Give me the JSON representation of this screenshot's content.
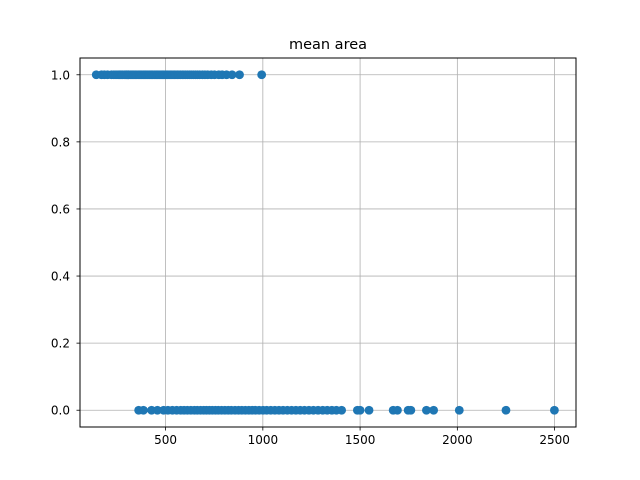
{
  "chart_data": {
    "type": "scatter",
    "title": "mean area",
    "xlabel": "",
    "ylabel": "",
    "xlim": [
      60,
      2610
    ],
    "ylim": [
      -0.05,
      1.05
    ],
    "xticks": [
      500,
      1000,
      1500,
      2000,
      2500
    ],
    "yticks": [
      0.0,
      0.2,
      0.4,
      0.6,
      0.8,
      1.0
    ],
    "xtick_labels": [
      "500",
      "1000",
      "1500",
      "2000",
      "2500"
    ],
    "ytick_labels": [
      "0.0",
      "0.2",
      "0.4",
      "0.6",
      "0.8",
      "1.0"
    ],
    "grid": true,
    "marker_color": "#1f77b4",
    "series": [
      {
        "x": [
          143.5,
          170.4,
          185.2,
          201.9,
          221.8,
          234.3,
          245.1,
          255.5,
          262.0,
          268.8,
          275.3,
          280.6,
          289.1,
          294.5,
          300.2,
          307.3,
          311.7,
          318.6,
          324.2,
          330.5,
          336.1,
          342.3,
          347.6,
          353.3,
          359.9,
          366.5,
          372.7,
          378.4,
          384.8,
          390.5,
          396.6,
          403.3,
          409.1,
          415.2,
          421.0,
          427.9,
          433.5,
          440.6,
          446.2,
          452.7,
          458.9,
          465.4,
          471.3,
          477.6,
          484.0,
          490.2,
          496.8,
          503.5,
          510.3,
          517.4,
          524.0,
          531.8,
          538.7,
          546.3,
          553.4,
          561.3,
          568.8,
          577.3,
          585.9,
          594.2,
          603.2,
          612.4,
          621.8,
          631.4,
          642.3,
          653.4,
          664.0,
          675.2,
          689.5,
          702.4,
          716.6,
          734.6,
          751.6,
          773.5,
          790.8,
          813.3,
          841.8,
          880.2,
          994.0
        ],
        "y": [
          1,
          1,
          1,
          1,
          1,
          1,
          1,
          1,
          1,
          1,
          1,
          1,
          1,
          1,
          1,
          1,
          1,
          1,
          1,
          1,
          1,
          1,
          1,
          1,
          1,
          1,
          1,
          1,
          1,
          1,
          1,
          1,
          1,
          1,
          1,
          1,
          1,
          1,
          1,
          1,
          1,
          1,
          1,
          1,
          1,
          1,
          1,
          1,
          1,
          1,
          1,
          1,
          1,
          1,
          1,
          1,
          1,
          1,
          1,
          1,
          1,
          1,
          1,
          1,
          1,
          1,
          1,
          1,
          1,
          1,
          1,
          1,
          1,
          1,
          1,
          1,
          1,
          1,
          1
        ]
      },
      {
        "x": [
          361.6,
          386.0,
          428.0,
          458.0,
          490.0,
          512.0,
          535.0,
          557.0,
          578.0,
          595.0,
          612.0,
          630.0,
          648.0,
          663.0,
          680.0,
          696.0,
          710.0,
          725.0,
          740.0,
          756.0,
          771.0,
          788.0,
          805.0,
          822.0,
          838.0,
          857.0,
          875.0,
          892.0,
          910.0,
          928.0,
          945.0,
          962.0,
          981.0,
          1001.0,
          1020.0,
          1041.0,
          1062.0,
          1083.0,
          1104.0,
          1126.0,
          1148.0,
          1170.0,
          1192.0,
          1214.0,
          1237.0,
          1260.0,
          1284.0,
          1308.0,
          1331.0,
          1355.0,
          1378.0,
          1405.0,
          1486.0,
          1500.0,
          1546.0,
          1670.0,
          1692.0,
          1747.0,
          1761.0,
          1841.0,
          1878.0,
          2010.0,
          2250.0,
          2499.0
        ],
        "y": [
          0,
          0,
          0,
          0,
          0,
          0,
          0,
          0,
          0,
          0,
          0,
          0,
          0,
          0,
          0,
          0,
          0,
          0,
          0,
          0,
          0,
          0,
          0,
          0,
          0,
          0,
          0,
          0,
          0,
          0,
          0,
          0,
          0,
          0,
          0,
          0,
          0,
          0,
          0,
          0,
          0,
          0,
          0,
          0,
          0,
          0,
          0,
          0,
          0,
          0,
          0,
          0,
          0,
          0,
          0,
          0,
          0,
          0,
          0,
          0,
          0,
          0,
          0,
          0
        ]
      }
    ]
  }
}
